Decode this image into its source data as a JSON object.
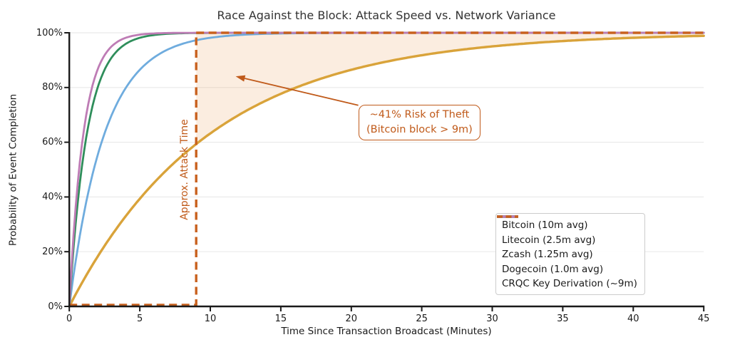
{
  "title": "Race Against the Block: Attack Speed vs. Network Variance",
  "colors": {
    "bitcoin": "#D9A33A",
    "litecoin": "#6FACDE",
    "zcash": "#2F8E5B",
    "dogecoin": "#BE7CB5",
    "crqc": "#C8611E",
    "annotation": "#C05A1A",
    "shaded_fill": "rgba(230,126,34,0.14)",
    "grid": "#eaeaea",
    "axis": "#1a1a1a",
    "legend_border": "#cccccc"
  },
  "chart_data": {
    "type": "line",
    "title": "Race Against the Block: Attack Speed vs. Network Variance",
    "xlabel": "Time Since Transaction Broadcast (Minutes)",
    "ylabel": "Probability of Event Completion",
    "xlim": [
      0,
      45
    ],
    "ylim": [
      0,
      1
    ],
    "x_ticks": [
      0,
      5,
      10,
      15,
      20,
      25,
      30,
      35,
      40,
      45
    ],
    "y_ticks": [
      0,
      0.2,
      0.4,
      0.6,
      0.8,
      1.0
    ],
    "y_tick_labels": [
      "0%",
      "20%",
      "40%",
      "60%",
      "80%",
      "100%"
    ],
    "grid": "horizontal-only",
    "legend_position": "lower-right-inside",
    "model": "exponential CDF: y = 1 - exp(-t / mean_minutes); CRQC is a step at 9 minutes",
    "series": [
      {
        "name": "Bitcoin (10m avg)",
        "kind": "exp_cdf",
        "mean_minutes": 10,
        "color": "#D9A33A",
        "style": "solid",
        "width": 3.4
      },
      {
        "name": "Litecoin (2.5m avg)",
        "kind": "exp_cdf",
        "mean_minutes": 2.5,
        "color": "#6FACDE",
        "style": "solid",
        "width": 2.8
      },
      {
        "name": "Zcash (1.25m avg)",
        "kind": "exp_cdf",
        "mean_minutes": 1.25,
        "color": "#2F8E5B",
        "style": "solid",
        "width": 2.8
      },
      {
        "name": "Dogecoin (1.0m avg)",
        "kind": "exp_cdf",
        "mean_minutes": 1.0,
        "color": "#BE7CB5",
        "style": "solid",
        "width": 2.8
      },
      {
        "name": "CRQC Key Derivation (~9m)",
        "kind": "step",
        "step_at_minutes": 9,
        "color": "#C8611E",
        "style": "dashed",
        "width": 3.4
      }
    ],
    "sample_points": {
      "x": [
        0,
        1,
        2,
        3,
        5,
        7.5,
        9,
        10,
        15,
        20,
        30,
        45
      ],
      "bitcoin": [
        0,
        0.095,
        0.181,
        0.259,
        0.393,
        0.528,
        0.593,
        0.632,
        0.777,
        0.865,
        0.95,
        0.989
      ],
      "litecoin": [
        0,
        0.33,
        0.551,
        0.699,
        0.865,
        0.95,
        0.973,
        0.982,
        0.998,
        1.0,
        1.0,
        1.0
      ],
      "zcash": [
        0,
        0.551,
        0.798,
        0.909,
        0.982,
        0.998,
        0.999,
        1.0,
        1.0,
        1.0,
        1.0,
        1.0
      ],
      "dogecoin": [
        0,
        0.632,
        0.865,
        0.95,
        0.993,
        0.999,
        1.0,
        1.0,
        1.0,
        1.0,
        1.0,
        1.0
      ],
      "crqc_step": [
        0,
        0,
        0,
        0,
        0,
        0,
        1,
        1,
        1,
        1,
        1,
        1
      ]
    },
    "shaded_region": {
      "description": "area between Bitcoin CDF and 100% for t >= 9 minutes",
      "from_x": 9,
      "to_x": 45,
      "fill": "rgba(230,126,34,0.14)"
    },
    "vline": {
      "x": 9,
      "label": "Approx. Attack Time"
    },
    "annotation": {
      "line1": "~41% Risk of Theft",
      "line2": "(Bitcoin block > 9m)",
      "risk_at_9m": "40.7%",
      "arrow_tip_data_xy": [
        11.8,
        0.841
      ],
      "arrow_tail_data_xy": [
        20.5,
        0.735
      ]
    }
  },
  "legend": {
    "items": [
      {
        "label": "Bitcoin (10m avg)"
      },
      {
        "label": "Litecoin (2.5m avg)"
      },
      {
        "label": "Zcash (1.25m avg)"
      },
      {
        "label": "Dogecoin (1.0m avg)"
      },
      {
        "label": "CRQC Key Derivation (~9m)"
      }
    ]
  }
}
